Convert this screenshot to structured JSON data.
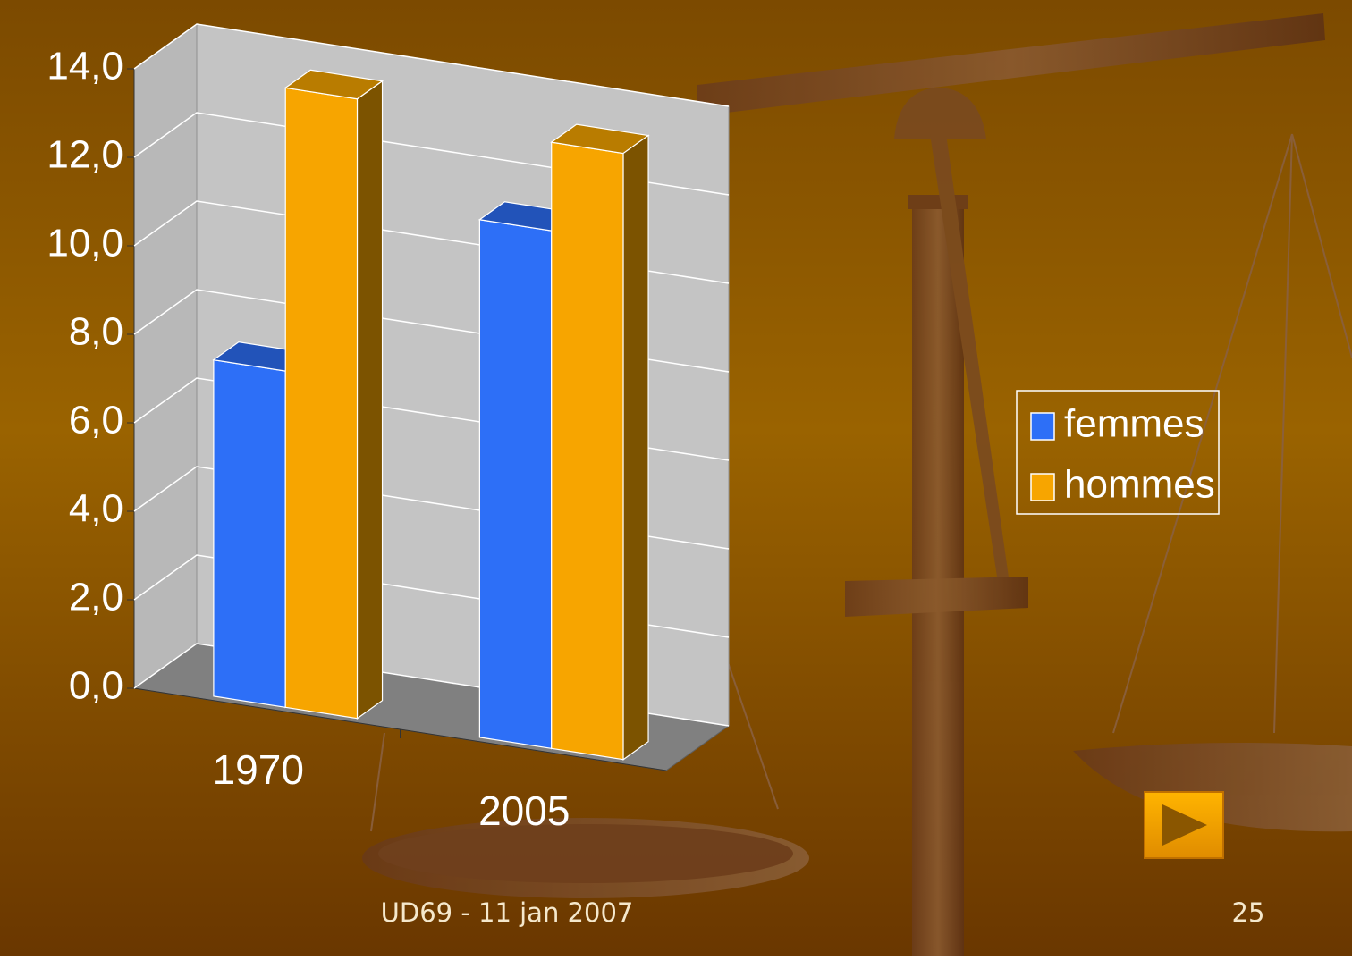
{
  "chart_data": {
    "type": "bar3d",
    "categories": [
      "1970",
      "2005"
    ],
    "series": [
      {
        "name": "femmes",
        "color": "#2d6ff7",
        "values": [
          7.6,
          11.7
        ]
      },
      {
        "name": "hommes",
        "color": "#f7a500",
        "values": [
          14.0,
          13.7
        ]
      }
    ],
    "ylim": [
      0,
      14
    ],
    "yticks": [
      {
        "value": 0,
        "label": "0,0"
      },
      {
        "value": 2,
        "label": "2,0"
      },
      {
        "value": 4,
        "label": "4,0"
      },
      {
        "value": 6,
        "label": "6,0"
      },
      {
        "value": 8,
        "label": "8,0"
      },
      {
        "value": 10,
        "label": "10,0"
      },
      {
        "value": 12,
        "label": "12,0"
      },
      {
        "value": 14,
        "label": "14,0"
      }
    ],
    "grid": true
  },
  "footer": {
    "text": "UD69 - 11 jan 2007",
    "page": "25"
  }
}
